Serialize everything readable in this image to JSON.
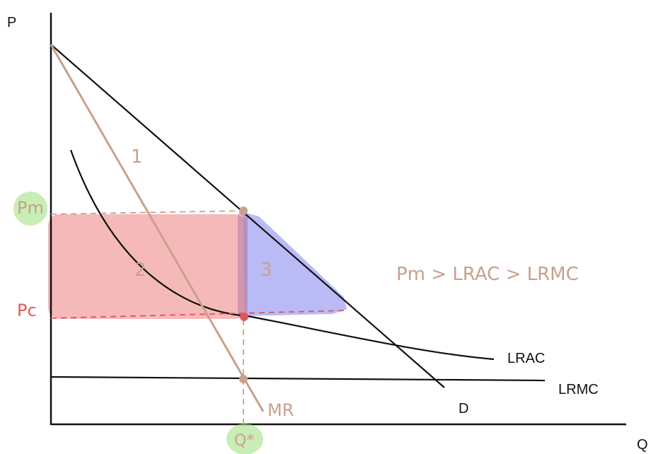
{
  "axes": {
    "y_label": "P",
    "x_label": "Q"
  },
  "curves": {
    "demand_label": "D",
    "mr_label": "MR",
    "lrac_label": "LRAC",
    "lrmc_label": "LRMC"
  },
  "price_labels": {
    "pm": "Pm",
    "pc": "Pc",
    "q_star": "Q*"
  },
  "regions": {
    "r1": "1",
    "r2": "2",
    "r3": "3"
  },
  "annotation": "Pm > LRAC > LRMC",
  "colors": {
    "axis": "#111111",
    "mr": "#c9a08c",
    "red_region": "#f08a8a",
    "blue_region": "#8c8cf0",
    "highlight": "#9be07a",
    "pc_point": "#e05555",
    "dashed_brown": "#c9a08c",
    "dashed_red": "#e05555"
  }
}
